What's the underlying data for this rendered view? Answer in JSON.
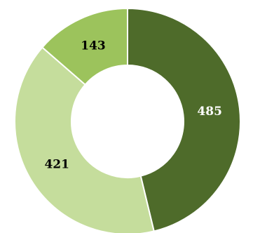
{
  "chart_data": {
    "type": "pie",
    "variant": "donut",
    "title": "",
    "legend": "none",
    "categories": [
      "",
      "",
      ""
    ],
    "values": [
      485,
      421,
      143
    ],
    "data_labels": [
      "485",
      "421",
      "143"
    ],
    "colors": [
      "#4e6b2a",
      "#c5dd9c",
      "#9cc35c"
    ],
    "label_colors": [
      "#ffffff",
      "#000000",
      "#000000"
    ]
  }
}
